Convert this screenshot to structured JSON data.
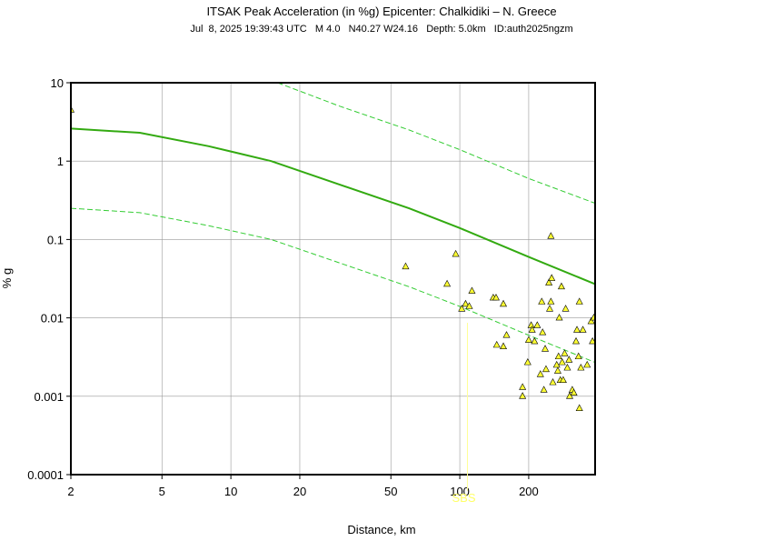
{
  "chart_data": {
    "type": "scatter",
    "title": "ITSAK Peak Acceleration (in %g) Epicenter: Chalkidiki – N. Greece",
    "subtitle": "Jul  8, 2025 19:39:43 UTC   M 4.0   N40.27 W24.16   Depth: 5.0km   ID:auth2025ngzm",
    "x_label": "Distance, km",
    "y_label": "% g",
    "x_scale": "log",
    "y_scale": "log",
    "grid": true,
    "xlim": [
      2,
      390
    ],
    "ylim": [
      0.0001,
      10
    ],
    "xticks": [
      2,
      5,
      10,
      20,
      50,
      100,
      200
    ],
    "yticks": [
      0.0001,
      0.001,
      0.01,
      0.1,
      1,
      10
    ],
    "annotations": [
      {
        "text": "SBS",
        "x": 108
      }
    ],
    "series": [
      {
        "mode": "line",
        "color": "#33aa11",
        "dash": false,
        "x": [
          2,
          4,
          8,
          15,
          30,
          60,
          100,
          200,
          390
        ],
        "values": [
          2.6,
          2.3,
          1.55,
          1.0,
          0.5,
          0.25,
          0.14,
          0.06,
          0.027
        ]
      },
      {
        "mode": "line",
        "color": "#33cc33",
        "dash": true,
        "x": [
          16,
          30,
          60,
          100,
          200,
          390
        ],
        "values": [
          10,
          5,
          2.5,
          1.4,
          0.6,
          0.29
        ]
      },
      {
        "mode": "line",
        "color": "#33cc33",
        "dash": true,
        "x": [
          2,
          4,
          8,
          15,
          30,
          60,
          100,
          200,
          390
        ],
        "values": [
          0.25,
          0.22,
          0.15,
          0.1,
          0.05,
          0.025,
          0.014,
          0.006,
          0.0027
        ]
      },
      {
        "mode": "markers",
        "color": "#ffff33",
        "x": [
          2,
          58,
          88,
          96,
          102,
          106,
          110,
          113,
          140,
          144,
          145,
          155,
          155,
          160,
          188,
          188,
          198,
          200,
          205,
          207,
          212,
          218,
          225,
          228,
          230,
          233,
          236,
          238,
          245,
          247,
          250,
          250,
          252,
          255,
          265,
          268,
          270,
          272,
          275,
          278,
          280,
          283,
          287,
          290,
          295,
          300,
          302,
          310,
          315,
          322,
          325,
          330,
          333,
          333,
          338,
          345,
          360,
          375,
          380,
          385
        ],
        "values": [
          4.5,
          0.045,
          0.027,
          0.065,
          0.013,
          0.015,
          0.014,
          0.022,
          0.018,
          0.018,
          0.0045,
          0.015,
          0.0043,
          0.006,
          0.0013,
          0.001,
          0.0027,
          0.0052,
          0.008,
          0.007,
          0.005,
          0.008,
          0.0019,
          0.016,
          0.0065,
          0.0012,
          0.004,
          0.0022,
          0.028,
          0.013,
          0.11,
          0.016,
          0.032,
          0.0015,
          0.0025,
          0.0021,
          0.0032,
          0.01,
          0.0016,
          0.025,
          0.0027,
          0.0016,
          0.0035,
          0.013,
          0.0023,
          0.0029,
          0.001,
          0.0012,
          0.0011,
          0.005,
          0.007,
          0.0032,
          0.016,
          0.0007,
          0.0023,
          0.007,
          0.0025,
          0.009,
          0.005,
          0.01
        ]
      }
    ]
  }
}
